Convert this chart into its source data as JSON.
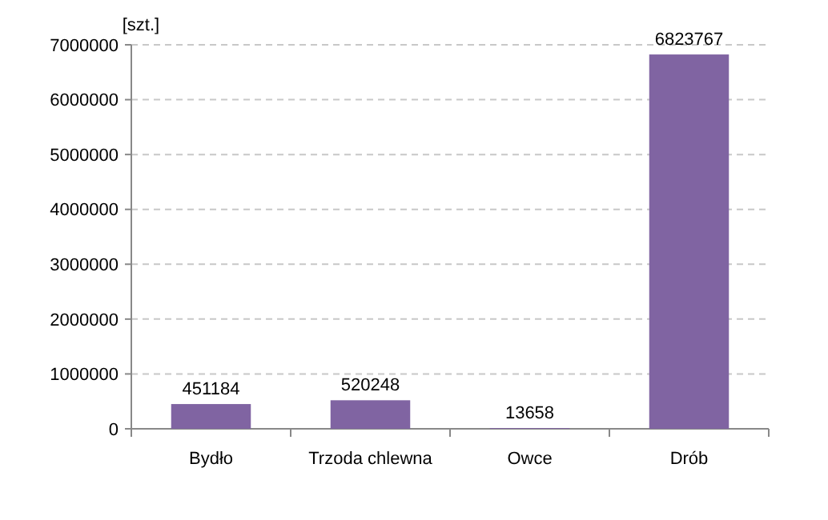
{
  "chart_data": {
    "type": "bar",
    "ylabel": "[szt.]",
    "categories": [
      "Bydło",
      "Trzoda chlewna",
      "Owce",
      "Drób"
    ],
    "values": [
      451184,
      520248,
      13658,
      6823767
    ],
    "color": "#8064a2",
    "ylim": [
      0,
      7000000
    ],
    "yticks": [
      0,
      1000000,
      2000000,
      3000000,
      4000000,
      5000000,
      6000000,
      7000000
    ],
    "grid": "y",
    "data_labels": true
  }
}
